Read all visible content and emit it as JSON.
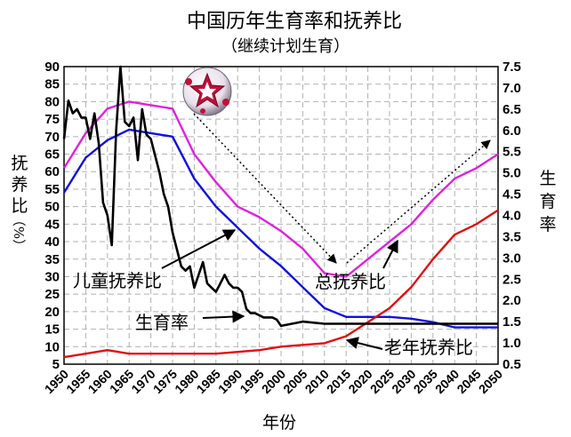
{
  "chart_data": {
    "type": "line",
    "title": "中国历年生育率和抚养比",
    "subtitle": "（继续计划生育）",
    "xlabel": "年份",
    "ylabel_left": [
      "抚",
      "养",
      "比",
      "（%）"
    ],
    "ylabel_right": [
      "生",
      "育",
      "率"
    ],
    "xlim": [
      1950,
      2050
    ],
    "ylim_left": [
      5,
      90
    ],
    "ylim_right": [
      0.5,
      7.5
    ],
    "grid": true,
    "x_ticks": [
      "1950",
      "1955",
      "1960",
      "1965",
      "1970",
      "1975",
      "1980",
      "1985",
      "1990",
      "1995",
      "2000",
      "2005",
      "2010",
      "2015",
      "2020",
      "2025",
      "2030",
      "2035",
      "2040",
      "2045",
      "2050"
    ],
    "y_ticks_left": [
      "5",
      "10",
      "15",
      "20",
      "25",
      "30",
      "35",
      "40",
      "45",
      "50",
      "55",
      "60",
      "65",
      "70",
      "75",
      "80",
      "85",
      "90"
    ],
    "y_ticks_right": [
      "0.5",
      "1.0",
      "1.5",
      "2.0",
      "2.5",
      "3.0",
      "3.5",
      "4.0",
      "4.5",
      "5.0",
      "5.5",
      "6.0",
      "6.5",
      "7.0",
      "7.5"
    ],
    "series": [
      {
        "name": "总抚养比",
        "axis": "left",
        "color": "#e020e0",
        "x": [
          1950,
          1955,
          1960,
          1965,
          1970,
          1975,
          1980,
          1985,
          1990,
          1995,
          2000,
          2005,
          2010,
          2015,
          2020,
          2025,
          2030,
          2035,
          2040,
          2045,
          2050
        ],
        "values": [
          61,
          71,
          78,
          80,
          79,
          78,
          65,
          57,
          50,
          47,
          43,
          38,
          31,
          30,
          35,
          40,
          45,
          52,
          58,
          61,
          65
        ]
      },
      {
        "name": "儿童抚养比",
        "axis": "left",
        "color": "#1010e0",
        "x": [
          1950,
          1955,
          1960,
          1965,
          1970,
          1975,
          1980,
          1985,
          1990,
          1995,
          2000,
          2005,
          2010,
          2015,
          2020,
          2025,
          2030,
          2035,
          2040,
          2045,
          2050
        ],
        "values": [
          54,
          64,
          69,
          72,
          71,
          70,
          58,
          50,
          44,
          38,
          33,
          27,
          21,
          18.5,
          18.5,
          18.5,
          18,
          17,
          15.5,
          15.5,
          15.5
        ]
      },
      {
        "name": "老年抚养比",
        "axis": "left",
        "color": "#e01010",
        "x": [
          1950,
          1955,
          1960,
          1965,
          1970,
          1975,
          1980,
          1985,
          1990,
          1995,
          2000,
          2005,
          2010,
          2015,
          2020,
          2025,
          2030,
          2035,
          2040,
          2045,
          2050
        ],
        "values": [
          7,
          8,
          9,
          8,
          8,
          8,
          8,
          8,
          8.5,
          9,
          10,
          10.5,
          11,
          13,
          17,
          21,
          27,
          35,
          42,
          45,
          49
        ]
      },
      {
        "name": "生育率",
        "axis": "right",
        "color": "#000000",
        "x": [
          1950,
          1951,
          1952,
          1953,
          1954,
          1955,
          1956,
          1957,
          1958,
          1959,
          1960,
          1961,
          1962,
          1963,
          1964,
          1965,
          1966,
          1967,
          1968,
          1969,
          1970,
          1971,
          1972,
          1973,
          1974,
          1975,
          1976,
          1977,
          1978,
          1979,
          1980,
          1981,
          1982,
          1983,
          1984,
          1985,
          1986,
          1987,
          1988,
          1989,
          1990,
          1991,
          1992,
          1993,
          1994,
          1995,
          1996,
          1997,
          1998,
          1999,
          2000,
          2005,
          2010,
          2015,
          2020,
          2025,
          2030,
          2035,
          2040,
          2045,
          2050
        ],
        "values": [
          5.8,
          6.7,
          6.4,
          6.5,
          6.3,
          6.3,
          5.8,
          6.4,
          5.7,
          4.3,
          4.0,
          3.3,
          6.0,
          7.5,
          6.2,
          6.1,
          6.3,
          5.3,
          6.5,
          5.9,
          5.8,
          5.4,
          5.0,
          4.5,
          4.2,
          3.6,
          3.2,
          2.8,
          2.7,
          2.8,
          2.3,
          2.6,
          2.9,
          2.4,
          2.3,
          2.2,
          2.4,
          2.6,
          2.4,
          2.3,
          2.3,
          2.2,
          1.8,
          1.7,
          1.7,
          1.65,
          1.6,
          1.6,
          1.6,
          1.55,
          1.4,
          1.5,
          1.45,
          1.45,
          1.45,
          1.45,
          1.45,
          1.45,
          1.45,
          1.45,
          1.45
        ]
      }
    ],
    "annotations": [
      {
        "text": "儿童抚养比",
        "target": "儿童抚养比"
      },
      {
        "text": "生育率",
        "target": "生育率"
      },
      {
        "text": "总抚养比",
        "target": "总抚养比"
      },
      {
        "text": "老年抚养比",
        "target": "老年抚养比"
      }
    ]
  }
}
